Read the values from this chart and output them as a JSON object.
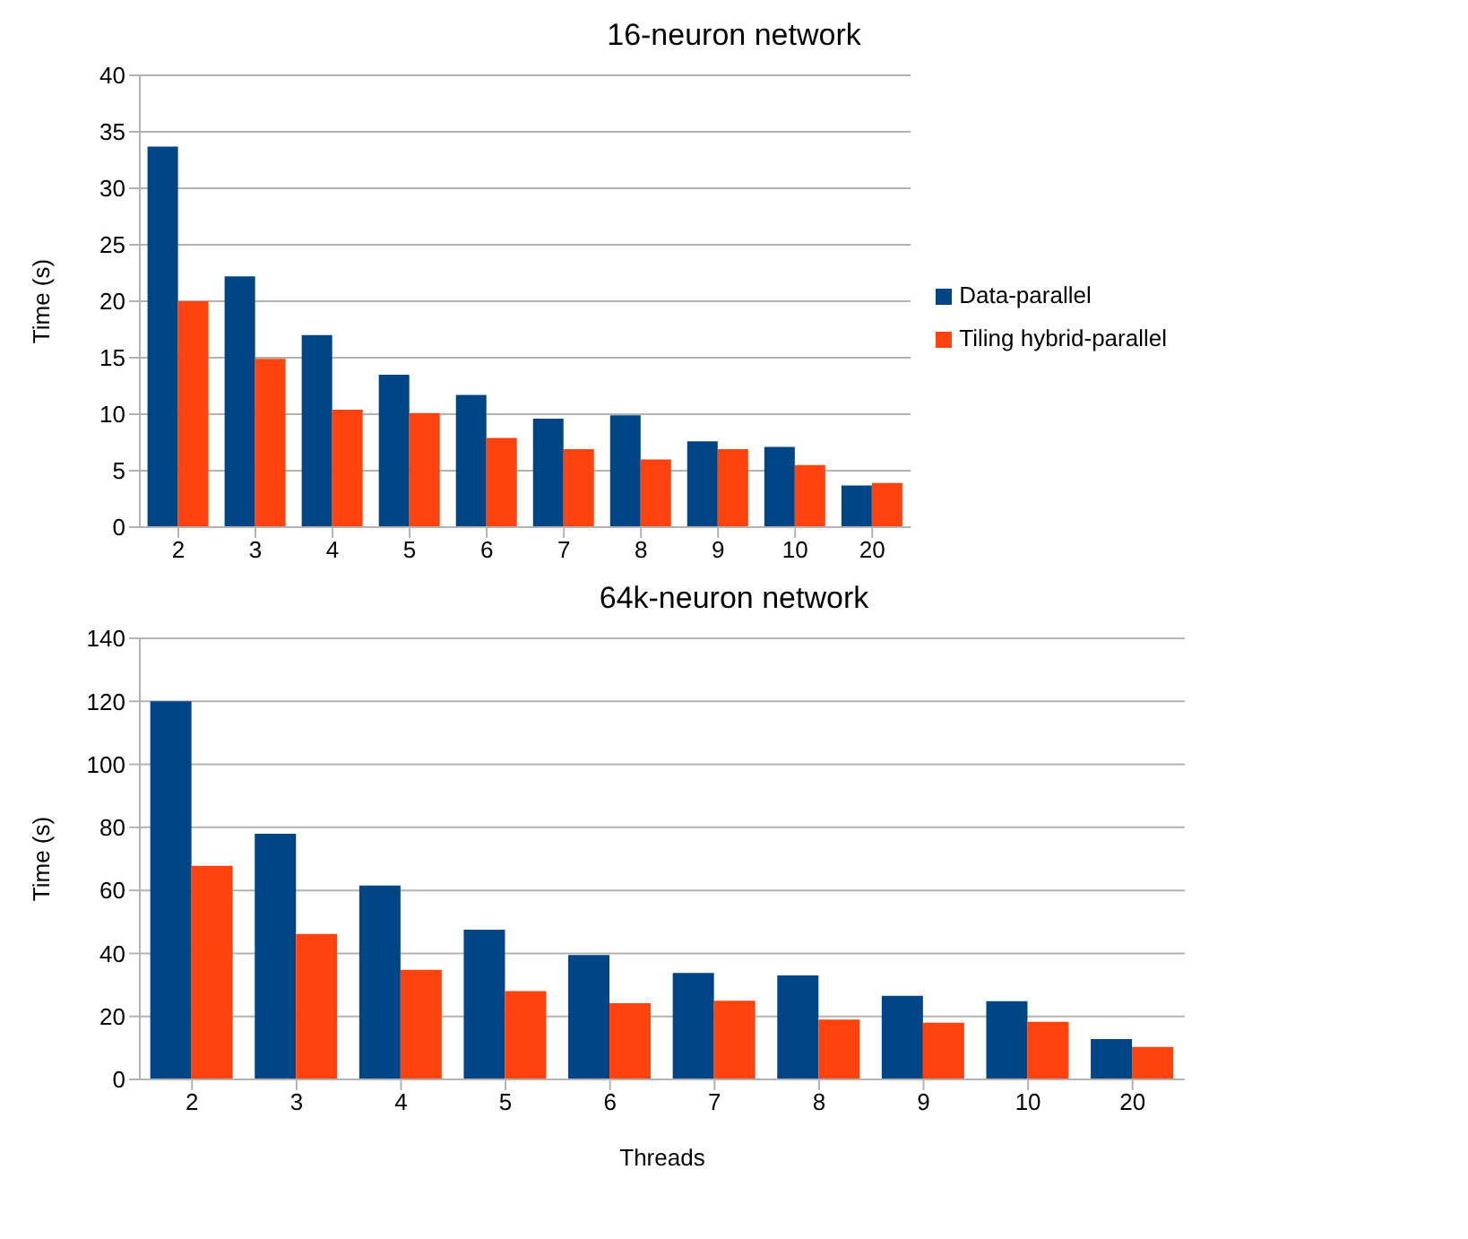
{
  "chart_data": [
    {
      "type": "bar",
      "title": "16-neuron network",
      "ylabel": "Time (s)",
      "categories": [
        "2",
        "3",
        "4",
        "5",
        "6",
        "7",
        "8",
        "9",
        "10",
        "20"
      ],
      "series": [
        {
          "name": "Data-parallel",
          "color": "#004586",
          "values": [
            33.7,
            22.2,
            17,
            13.5,
            11.7,
            9.6,
            9.9,
            7.6,
            7.1,
            3.7
          ]
        },
        {
          "name": "Tiling hybrid-parallel",
          "color": "#ff420e",
          "values": [
            20,
            14.9,
            10.4,
            10.1,
            7.9,
            6.9,
            6,
            6.9,
            5.5,
            3.9
          ]
        }
      ],
      "ylim": [
        0,
        40
      ],
      "yticks": [
        0,
        5,
        10,
        15,
        20,
        25,
        30,
        35,
        40
      ],
      "grid": "y",
      "legend": "right"
    },
    {
      "type": "bar",
      "title": "64k-neuron network",
      "xlabel": "Threads",
      "ylabel": "Time (s)",
      "categories": [
        "2",
        "3",
        "4",
        "5",
        "6",
        "7",
        "8",
        "9",
        "10",
        "20"
      ],
      "series": [
        {
          "color": "#004586",
          "values": [
            120,
            78,
            61.5,
            47.5,
            39.5,
            33.8,
            33,
            26.5,
            24.8,
            12.8
          ]
        },
        {
          "color": "#ff420e",
          "values": [
            67.8,
            46.2,
            34.8,
            28,
            24.2,
            25,
            19,
            18,
            18.3,
            10.3
          ]
        }
      ],
      "ylim": [
        0,
        140
      ],
      "yticks": [
        0,
        20,
        40,
        60,
        80,
        100,
        120,
        140
      ],
      "grid": "y"
    }
  ]
}
